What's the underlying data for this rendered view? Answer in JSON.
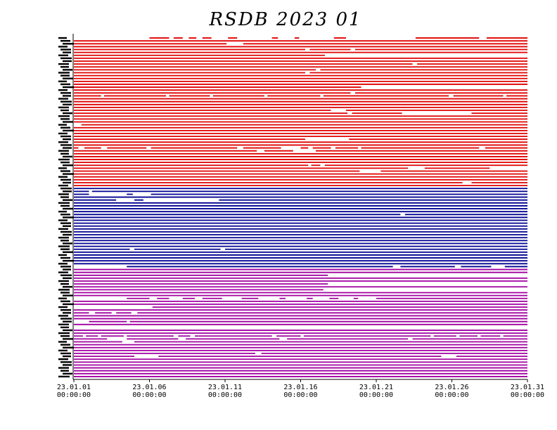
{
  "chart_data": {
    "type": "timeline",
    "title": "RSDB  2023  01",
    "x_range": [
      "2023-01-01 00:00:00",
      "2023-01-31 23:59:59"
    ],
    "x_ticks": [
      {
        "date": "23.01.01",
        "time": "00:00:00",
        "day": 1
      },
      {
        "date": "23.01.06",
        "time": "00:00:00",
        "day": 6
      },
      {
        "date": "23.01.11",
        "time": "00:00:00",
        "day": 11
      },
      {
        "date": "23.01.16",
        "time": "00:00:00",
        "day": 16
      },
      {
        "date": "23.01.21",
        "time": "00:00:00",
        "day": 21
      },
      {
        "date": "23.01.26",
        "time": "00:00:00",
        "day": 26
      },
      {
        "date": "23.01.31",
        "time": "00:00:00",
        "day": 31
      }
    ],
    "groups": [
      {
        "color": "#e00000",
        "rows": 52
      },
      {
        "color": "#000090",
        "rows": 28
      },
      {
        "color": "#a000a0",
        "rows": 38
      }
    ],
    "gaps": [
      [
        0,
        1.0,
        6.0
      ],
      [
        0,
        7.3,
        7.6
      ],
      [
        0,
        8.2,
        8.6
      ],
      [
        0,
        9.1,
        9.5
      ],
      [
        0,
        10.1,
        11.2
      ],
      [
        0,
        11.8,
        14.1
      ],
      [
        0,
        14.5,
        15.6
      ],
      [
        0,
        15.9,
        18.2
      ],
      [
        0,
        19.0,
        23.6
      ],
      [
        0,
        27.8,
        28.3
      ],
      [
        2,
        11.1,
        12.2
      ],
      [
        4,
        16.3,
        16.6
      ],
      [
        4,
        19.3,
        19.6
      ],
      [
        6,
        17.6,
        31.0
      ],
      [
        9,
        23.4,
        23.7
      ],
      [
        11,
        17.0,
        17.3
      ],
      [
        12,
        16.3,
        16.6
      ],
      [
        17,
        20.0,
        31.0
      ],
      [
        19,
        19.3,
        19.6
      ],
      [
        20,
        2.8,
        3.0
      ],
      [
        20,
        7.1,
        7.3
      ],
      [
        20,
        10.0,
        10.2
      ],
      [
        20,
        13.6,
        13.8
      ],
      [
        20,
        17.3,
        17.5
      ],
      [
        20,
        25.8,
        26.1
      ],
      [
        20,
        29.4,
        29.6
      ],
      [
        25,
        18.0,
        19.0
      ],
      [
        26,
        19.1,
        19.4
      ],
      [
        26,
        22.7,
        27.3
      ],
      [
        30,
        1.0,
        1.5
      ],
      [
        35,
        16.3,
        19.2
      ],
      [
        38,
        1.3,
        1.7
      ],
      [
        38,
        2.8,
        3.2
      ],
      [
        38,
        5.8,
        6.1
      ],
      [
        38,
        11.8,
        12.2
      ],
      [
        38,
        14.7,
        16.0
      ],
      [
        38,
        16.5,
        16.8
      ],
      [
        38,
        18.0,
        18.3
      ],
      [
        38,
        19.8,
        20.0
      ],
      [
        38,
        27.8,
        28.2
      ],
      [
        38,
        31.0,
        31.2
      ],
      [
        39,
        13.1,
        13.6
      ],
      [
        39,
        15.5,
        17.0
      ],
      [
        44,
        16.5,
        16.7
      ],
      [
        44,
        17.3,
        17.6
      ],
      [
        45,
        23.1,
        24.2
      ],
      [
        45,
        28.5,
        31.0
      ],
      [
        46,
        19.9,
        21.3
      ],
      [
        50,
        26.7,
        27.3
      ],
      [
        53,
        2.0,
        2.2
      ],
      [
        54,
        2.0,
        4.5
      ],
      [
        54,
        4.9,
        6.1
      ],
      [
        56,
        3.8,
        5.0
      ],
      [
        56,
        5.6,
        10.6
      ],
      [
        61,
        22.6,
        22.9
      ],
      [
        73,
        4.7,
        5.0
      ],
      [
        73,
        10.7,
        11.0
      ],
      [
        79,
        1.0,
        4.5
      ],
      [
        79,
        22.1,
        22.6
      ],
      [
        79,
        26.2,
        26.6
      ],
      [
        79,
        28.6,
        29.5
      ],
      [
        82,
        17.8,
        31.0
      ],
      [
        85,
        17.8,
        31.0
      ],
      [
        87,
        17.5,
        31.0
      ],
      [
        90,
        1.0,
        4.5
      ],
      [
        90,
        6.0,
        6.5
      ],
      [
        90,
        7.3,
        8.2
      ],
      [
        90,
        9.0,
        9.5
      ],
      [
        90,
        10.8,
        12.1
      ],
      [
        90,
        13.2,
        14.6
      ],
      [
        90,
        15.0,
        16.4
      ],
      [
        90,
        16.8,
        17.9
      ],
      [
        90,
        18.5,
        19.5
      ],
      [
        90,
        19.8,
        21.0
      ],
      [
        93,
        1.0,
        6.2
      ],
      [
        95,
        2.0,
        2.4
      ],
      [
        95,
        3.5,
        3.8
      ],
      [
        95,
        4.8,
        5.2
      ],
      [
        98,
        1.0,
        2.0
      ],
      [
        98,
        4.5,
        4.7
      ],
      [
        100,
        1.0,
        31.0
      ],
      [
        103,
        1.6,
        1.8
      ],
      [
        103,
        2.6,
        2.8
      ],
      [
        103,
        4.3,
        4.5
      ],
      [
        103,
        7.6,
        7.9
      ],
      [
        103,
        8.7,
        9.0
      ],
      [
        103,
        14.1,
        14.4
      ],
      [
        103,
        16.0,
        16.2
      ],
      [
        103,
        24.6,
        24.8
      ],
      [
        103,
        26.3,
        26.5
      ],
      [
        103,
        27.7,
        27.9
      ],
      [
        103,
        29.2,
        29.4
      ],
      [
        104,
        3.2,
        4.5
      ],
      [
        104,
        7.9,
        8.4
      ],
      [
        104,
        14.6,
        15.1
      ],
      [
        104,
        23.1,
        23.4
      ],
      [
        105,
        4.2,
        5.0
      ],
      [
        109,
        13.0,
        13.4
      ],
      [
        110,
        5.0,
        6.6
      ],
      [
        110,
        25.3,
        26.3
      ]
    ]
  }
}
